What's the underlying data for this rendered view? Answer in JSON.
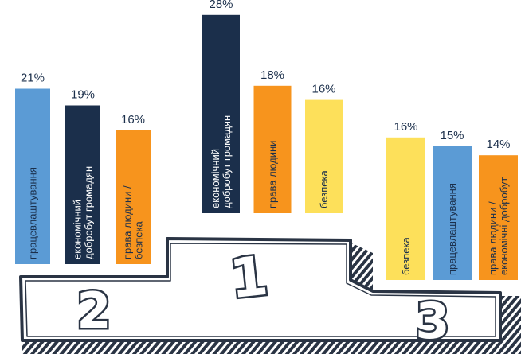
{
  "chart_data": [
    {
      "type": "bar",
      "place": "2",
      "categories": [
        "працевлаштування",
        "економічний добробут громадян",
        "права людини / безпека"
      ],
      "values": [
        21,
        19,
        16
      ],
      "labels": [
        "21%",
        "19%",
        "16%"
      ],
      "colors": [
        "#5b9bd5",
        "#1b2f4b",
        "#f7941d"
      ]
    },
    {
      "type": "bar",
      "place": "1",
      "categories": [
        "економічний добробут громадян",
        "права людини",
        "безпека"
      ],
      "values": [
        28,
        18,
        16
      ],
      "labels": [
        "28%",
        "18%",
        "16%"
      ],
      "colors": [
        "#1b2f4b",
        "#f7941d",
        "#fde05a"
      ]
    },
    {
      "type": "bar",
      "place": "3",
      "categories": [
        "безпека",
        "працевлаштування",
        "права людини / економічні добробут"
      ],
      "values": [
        16,
        15,
        14
      ],
      "labels": [
        "16%",
        "15%",
        "14%"
      ],
      "colors": [
        "#fde05a",
        "#5b9bd5",
        "#f7941d"
      ]
    }
  ],
  "podium": {
    "place_first": "1",
    "place_second": "2",
    "place_third": "3",
    "outline_color": "#2a3444"
  }
}
